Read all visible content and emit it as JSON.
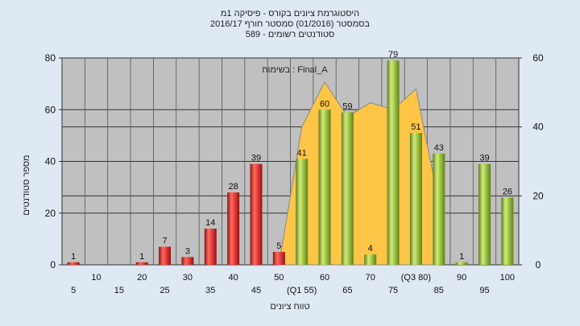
{
  "chart_data": {
    "type": "bar",
    "title_lines": [
      "היסטוגרמת ציונים בקורס - פיסיקה 1מ",
      "בסמסטר  (01/2016)  סמסטר חורף 2016/17",
      "סטודנטים רשומים - 589"
    ],
    "legend_label": "בשימוח : Final_A",
    "xlabel": "טווח ציונים",
    "ylabel": "מספר סטודנטים",
    "ylim": [
      0,
      80
    ],
    "y2lim": [
      0,
      60
    ],
    "yticks": [
      0,
      20,
      40,
      60,
      80
    ],
    "y2ticks": [
      0,
      20,
      40,
      60
    ],
    "grid": true,
    "categories": [
      "5",
      "10",
      "15",
      "20",
      "25",
      "30",
      "35",
      "40",
      "45",
      "50",
      "(Q1 55)",
      "60",
      "65",
      "70",
      "75",
      "(Q3 80)",
      "85",
      "90",
      "95",
      "100"
    ],
    "values": [
      1,
      0,
      0,
      1,
      7,
      3,
      14,
      28,
      39,
      5,
      41,
      60,
      59,
      4,
      79,
      51,
      43,
      1,
      39,
      26
    ],
    "data_labels": [
      "1",
      "",
      "",
      "1",
      "7",
      "3",
      "14",
      "28",
      "39",
      "5",
      "41",
      "60",
      "59",
      "4",
      "79",
      "51",
      "43",
      "1",
      "39",
      "26"
    ],
    "bar_colors": [
      "red",
      "red",
      "red",
      "red",
      "red",
      "red",
      "red",
      "red",
      "red",
      "red",
      "green",
      "green",
      "green",
      "green",
      "green",
      "green",
      "green",
      "green",
      "green",
      "green"
    ],
    "overlay_area": {
      "x": [
        "50",
        "(Q1 55)",
        "60",
        "65",
        "70",
        "75",
        "(Q3 80)",
        "85"
      ],
      "values_right_axis": [
        0,
        40,
        53,
        43,
        47,
        45,
        51,
        18
      ]
    },
    "colors": {
      "red_bar": "#e03a35",
      "green_bar": "#9ac042",
      "area": "#ffc546",
      "plot_bg": "#c0c0c0",
      "page_bg": "#dfe9f4"
    }
  }
}
